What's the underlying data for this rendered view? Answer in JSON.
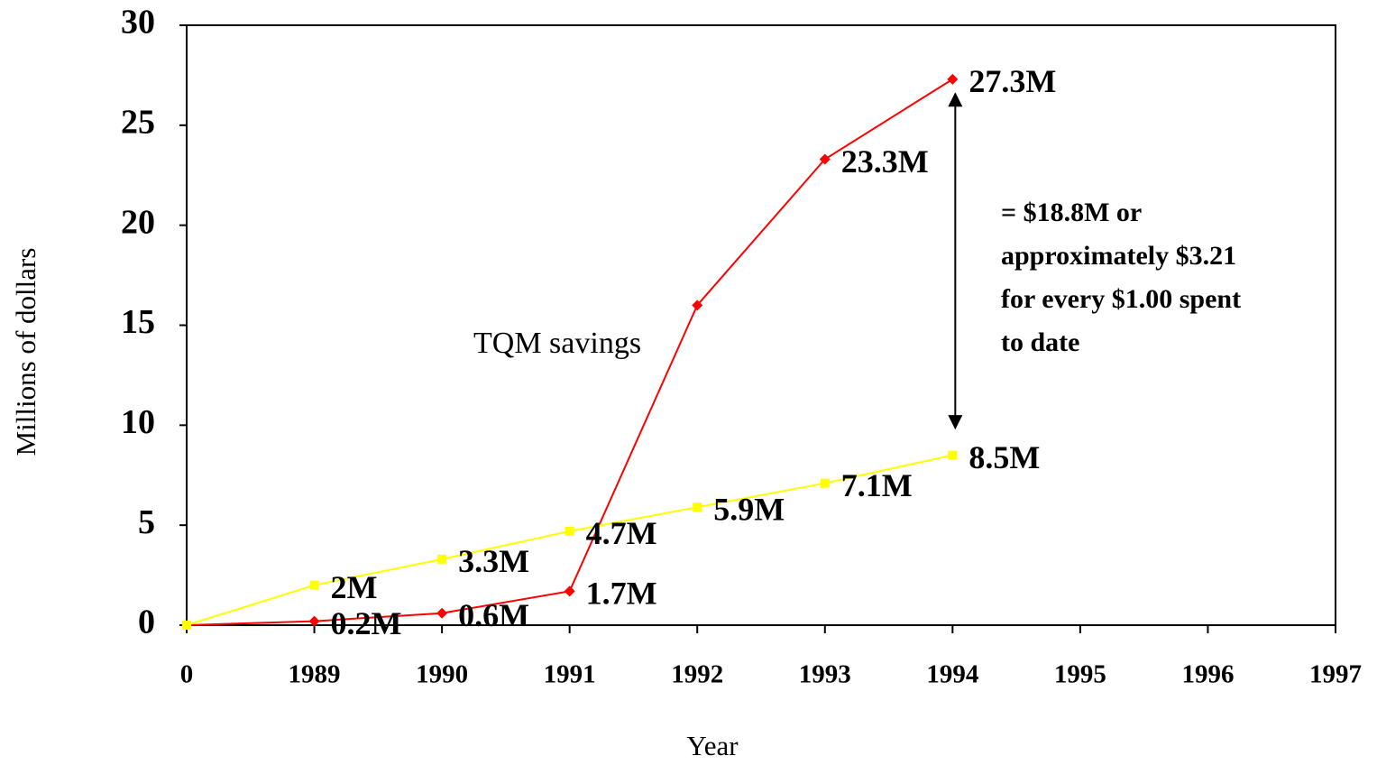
{
  "chart_data": {
    "type": "line",
    "y_label": "Millions of dollars",
    "x_label": "Year",
    "categories": [
      "0",
      "1989",
      "1990",
      "1991",
      "1992",
      "1993",
      "1994",
      "1995",
      "1996",
      "1997"
    ],
    "series": [
      {
        "color": "#ff0000",
        "marker": "diamond",
        "values": [
          0,
          0.2,
          0.6,
          1.7,
          16,
          23.3,
          27.3,
          null,
          null,
          null
        ],
        "value_labels": [
          null,
          "0.2M",
          "0.6M",
          "1.7M",
          null,
          "23.3M",
          "27.3M",
          null,
          null,
          null
        ]
      },
      {
        "color": "#ffff00",
        "marker": "square",
        "values": [
          0,
          2,
          3.3,
          4.7,
          5.9,
          7.1,
          8.5,
          null,
          null,
          null
        ],
        "value_labels": [
          null,
          "2M",
          "3.3M",
          "4.7M",
          "5.9M",
          "7.1M",
          "8.5M",
          null,
          null,
          null
        ]
      }
    ],
    "ylim": [
      0,
      30
    ],
    "yticks": [
      0,
      5,
      10,
      15,
      20,
      25,
      30
    ],
    "grid": false,
    "annotations": [
      "TQM savings",
      "= $18.8M or",
      "approximately $3.21",
      "for every $1.00 spent",
      "to date"
    ]
  }
}
